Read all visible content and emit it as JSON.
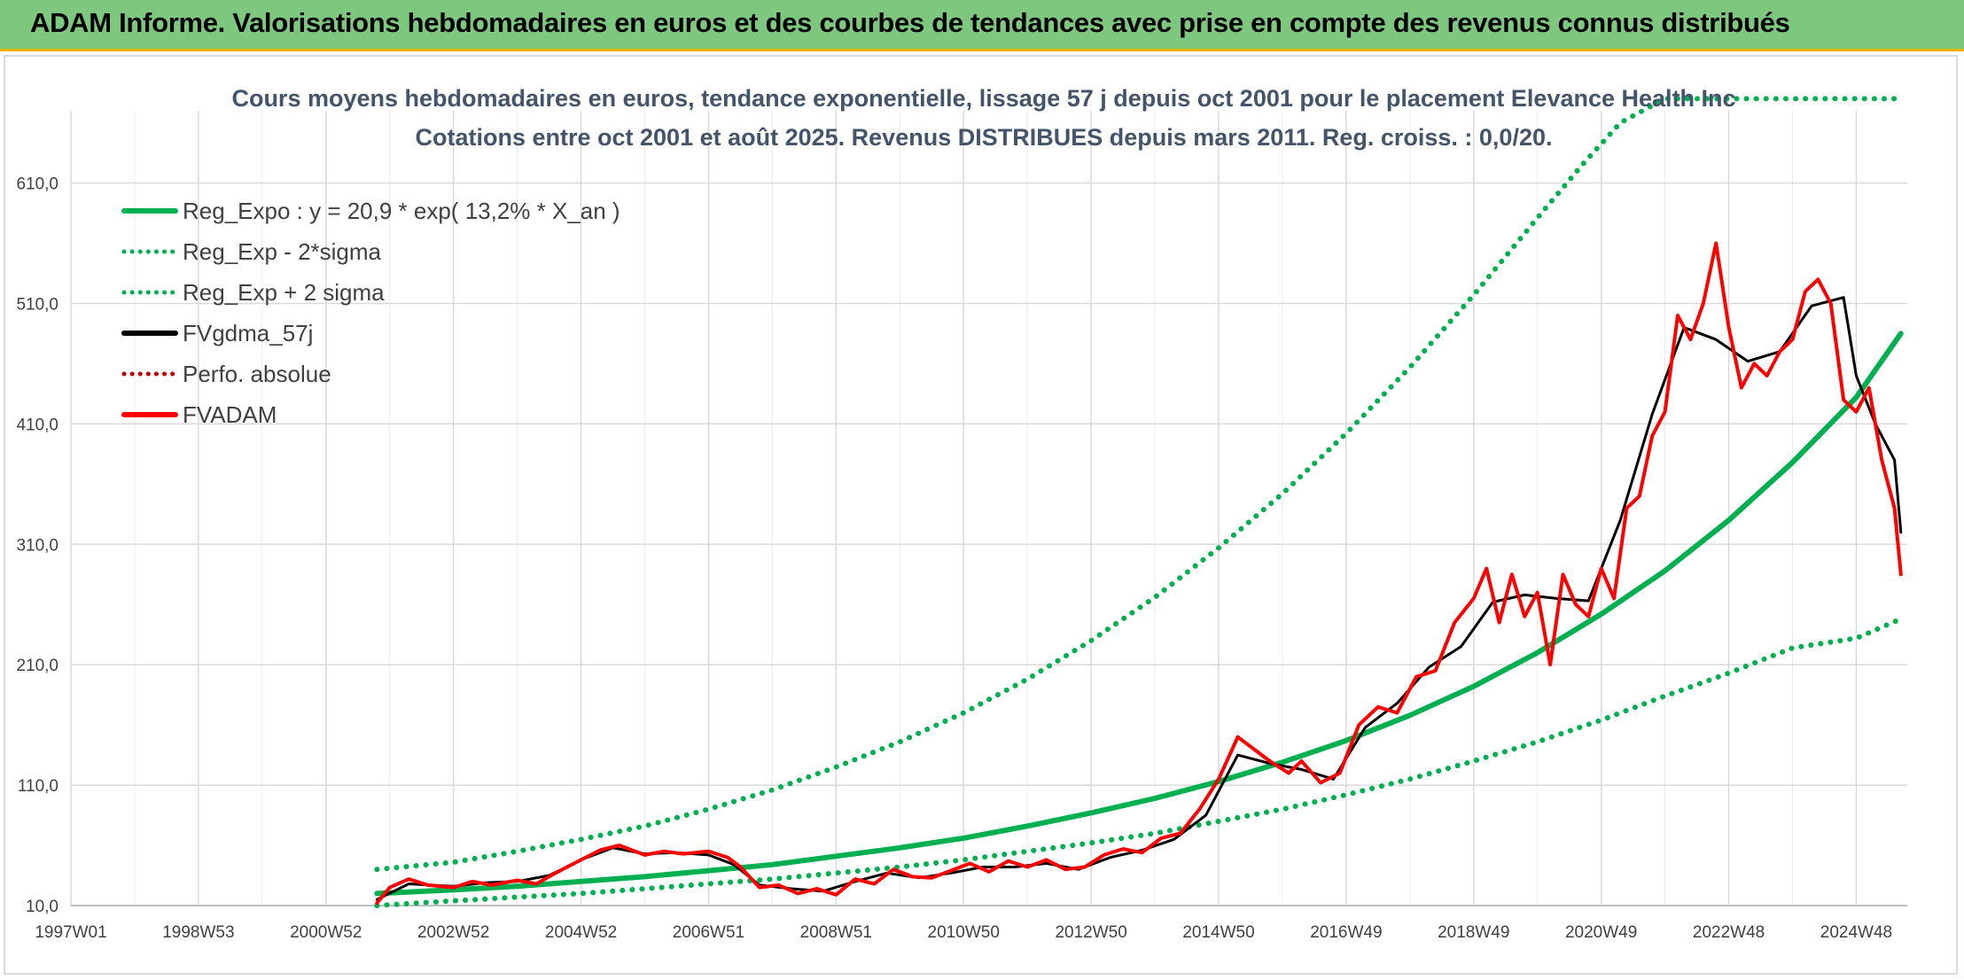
{
  "header": {
    "banner_title": "ADAM Informe. Valorisations hebdomadaires en euros et des courbes de tendances avec prise en compte des revenus connus distribués"
  },
  "chart_data": {
    "type": "line",
    "title_lines": [
      "Cours moyens hebdomadaires en euros, tendance exponentielle, lissage 57 j depuis oct 2001 pour le placement Elevance Health Inc",
      "Cotations entre oct 2001 et août 2025. Revenus DISTRIBUES depuis mars 2011. Reg. croiss. : 0,0/20."
    ],
    "xlabel": "",
    "ylabel": "",
    "x_ticks": [
      "1997W01",
      "1998W53",
      "2000W52",
      "2002W52",
      "2004W52",
      "2006W51",
      "2008W51",
      "2010W50",
      "2012W50",
      "2014W50",
      "2016W49",
      "2018W49",
      "2020W49",
      "2022W48",
      "2024W48"
    ],
    "x_range_years": [
      1997.0,
      2025.8
    ],
    "y_ticks": [
      "10,0",
      "110,0",
      "210,0",
      "310,0",
      "410,0",
      "510,0",
      "610,0"
    ],
    "ylim": [
      10,
      670
    ],
    "grid": true,
    "legend_position": "top-left",
    "colors": {
      "regression": "#00b050",
      "smoothed": "#000000",
      "fvadam": "#ff0000",
      "perfo": "#c00000",
      "grid": "#d9d9d9",
      "banner": "#7dc87e"
    },
    "series": [
      {
        "name": "Reg_Expo : y = 20,9 * exp( 13,2% *  X_an )",
        "style": "solid",
        "color": "#00b050",
        "points": [
          [
            2001.8,
            20
          ],
          [
            2003.0,
            23
          ],
          [
            2004.0,
            26
          ],
          [
            2005.0,
            30
          ],
          [
            2006.0,
            34
          ],
          [
            2007.0,
            39
          ],
          [
            2008.0,
            44
          ],
          [
            2009.0,
            51
          ],
          [
            2010.0,
            58
          ],
          [
            2011.0,
            66
          ],
          [
            2012.0,
            76
          ],
          [
            2013.0,
            87
          ],
          [
            2014.0,
            99
          ],
          [
            2015.0,
            113
          ],
          [
            2016.0,
            129
          ],
          [
            2017.0,
            147
          ],
          [
            2018.0,
            168
          ],
          [
            2019.0,
            192
          ],
          [
            2020.0,
            220
          ],
          [
            2021.0,
            252
          ],
          [
            2022.0,
            288
          ],
          [
            2023.0,
            330
          ],
          [
            2024.0,
            378
          ],
          [
            2025.0,
            432
          ],
          [
            2025.7,
            485
          ]
        ]
      },
      {
        "name": "Reg_Exp - 2*sigma",
        "style": "dotted",
        "color": "#00b050",
        "points": [
          [
            2001.8,
            10
          ],
          [
            2003.0,
            14
          ],
          [
            2004.0,
            17
          ],
          [
            2005.0,
            20
          ],
          [
            2006.0,
            24
          ],
          [
            2007.0,
            28
          ],
          [
            2008.0,
            32
          ],
          [
            2009.0,
            37
          ],
          [
            2010.0,
            42
          ],
          [
            2011.0,
            48
          ],
          [
            2012.0,
            55
          ],
          [
            2013.0,
            62
          ],
          [
            2014.0,
            70
          ],
          [
            2015.0,
            80
          ],
          [
            2016.0,
            90
          ],
          [
            2017.0,
            102
          ],
          [
            2018.0,
            115
          ],
          [
            2019.0,
            130
          ],
          [
            2020.0,
            146
          ],
          [
            2021.0,
            164
          ],
          [
            2022.0,
            184
          ],
          [
            2023.0,
            203
          ],
          [
            2024.0,
            224
          ],
          [
            2025.0,
            232
          ],
          [
            2025.7,
            248
          ]
        ]
      },
      {
        "name": "Reg_Exp + 2 sigma",
        "style": "dotted",
        "color": "#00b050",
        "points": [
          [
            2001.8,
            40
          ],
          [
            2003.0,
            46
          ],
          [
            2004.0,
            55
          ],
          [
            2005.0,
            65
          ],
          [
            2006.0,
            76
          ],
          [
            2007.0,
            90
          ],
          [
            2008.0,
            106
          ],
          [
            2009.0,
            125
          ],
          [
            2010.0,
            146
          ],
          [
            2011.0,
            170
          ],
          [
            2012.0,
            198
          ],
          [
            2013.0,
            230
          ],
          [
            2014.0,
            266
          ],
          [
            2015.0,
            307
          ],
          [
            2016.0,
            352
          ],
          [
            2017.0,
            402
          ],
          [
            2018.0,
            457
          ],
          [
            2019.0,
            517
          ],
          [
            2020.0,
            581
          ],
          [
            2020.7,
            625
          ],
          [
            2021.3,
            660
          ],
          [
            2022.0,
            680
          ],
          [
            2023.0,
            680
          ],
          [
            2024.0,
            680
          ],
          [
            2025.7,
            680
          ]
        ]
      },
      {
        "name": "FVgdma_57j",
        "style": "solid",
        "color": "#000000",
        "points": [
          [
            2001.8,
            15
          ],
          [
            2002.3,
            28
          ],
          [
            2003.0,
            26
          ],
          [
            2003.5,
            29
          ],
          [
            2004.0,
            30
          ],
          [
            2004.5,
            35
          ],
          [
            2005.0,
            48
          ],
          [
            2005.5,
            58
          ],
          [
            2006.0,
            53
          ],
          [
            2006.5,
            54
          ],
          [
            2007.0,
            52
          ],
          [
            2007.4,
            44
          ],
          [
            2007.8,
            27
          ],
          [
            2008.3,
            24
          ],
          [
            2008.8,
            22
          ],
          [
            2009.3,
            30
          ],
          [
            2009.8,
            37
          ],
          [
            2010.3,
            33
          ],
          [
            2010.8,
            37
          ],
          [
            2011.3,
            42
          ],
          [
            2011.8,
            42
          ],
          [
            2012.3,
            45
          ],
          [
            2012.8,
            40
          ],
          [
            2013.3,
            50
          ],
          [
            2013.8,
            56
          ],
          [
            2014.3,
            65
          ],
          [
            2014.8,
            85
          ],
          [
            2015.3,
            135
          ],
          [
            2015.8,
            128
          ],
          [
            2016.3,
            123
          ],
          [
            2016.8,
            115
          ],
          [
            2017.3,
            158
          ],
          [
            2017.8,
            178
          ],
          [
            2018.3,
            208
          ],
          [
            2018.8,
            225
          ],
          [
            2019.3,
            262
          ],
          [
            2019.8,
            268
          ],
          [
            2020.3,
            265
          ],
          [
            2020.8,
            263
          ],
          [
            2021.3,
            330
          ],
          [
            2021.8,
            418
          ],
          [
            2022.3,
            490
          ],
          [
            2022.8,
            480
          ],
          [
            2023.3,
            462
          ],
          [
            2023.8,
            470
          ],
          [
            2024.3,
            508
          ],
          [
            2024.8,
            515
          ],
          [
            2025.0,
            450
          ],
          [
            2025.3,
            410
          ],
          [
            2025.6,
            380
          ],
          [
            2025.7,
            320
          ]
        ]
      },
      {
        "name": "Perfo. absolue",
        "style": "dotted",
        "color": "#c00000",
        "points": []
      },
      {
        "name": "FVADAM",
        "style": "solid",
        "color": "#ff0000",
        "points": [
          [
            2001.8,
            12
          ],
          [
            2002.0,
            25
          ],
          [
            2002.3,
            32
          ],
          [
            2002.6,
            27
          ],
          [
            2003.0,
            25
          ],
          [
            2003.3,
            30
          ],
          [
            2003.6,
            27
          ],
          [
            2004.0,
            31
          ],
          [
            2004.3,
            28
          ],
          [
            2004.6,
            37
          ],
          [
            2005.0,
            48
          ],
          [
            2005.3,
            56
          ],
          [
            2005.6,
            60
          ],
          [
            2006.0,
            52
          ],
          [
            2006.3,
            55
          ],
          [
            2006.6,
            53
          ],
          [
            2007.0,
            55
          ],
          [
            2007.3,
            50
          ],
          [
            2007.5,
            42
          ],
          [
            2007.8,
            25
          ],
          [
            2008.1,
            27
          ],
          [
            2008.4,
            20
          ],
          [
            2008.7,
            24
          ],
          [
            2009.0,
            19
          ],
          [
            2009.3,
            32
          ],
          [
            2009.6,
            28
          ],
          [
            2009.9,
            40
          ],
          [
            2010.2,
            34
          ],
          [
            2010.5,
            33
          ],
          [
            2010.8,
            39
          ],
          [
            2011.1,
            45
          ],
          [
            2011.4,
            38
          ],
          [
            2011.7,
            47
          ],
          [
            2012.0,
            42
          ],
          [
            2012.3,
            48
          ],
          [
            2012.6,
            40
          ],
          [
            2012.9,
            42
          ],
          [
            2013.2,
            52
          ],
          [
            2013.5,
            57
          ],
          [
            2013.8,
            54
          ],
          [
            2014.1,
            66
          ],
          [
            2014.4,
            70
          ],
          [
            2014.7,
            90
          ],
          [
            2015.0,
            115
          ],
          [
            2015.3,
            150
          ],
          [
            2015.5,
            142
          ],
          [
            2015.8,
            130
          ],
          [
            2016.1,
            120
          ],
          [
            2016.3,
            130
          ],
          [
            2016.6,
            112
          ],
          [
            2016.9,
            120
          ],
          [
            2017.2,
            160
          ],
          [
            2017.5,
            175
          ],
          [
            2017.8,
            170
          ],
          [
            2018.1,
            200
          ],
          [
            2018.4,
            205
          ],
          [
            2018.7,
            245
          ],
          [
            2019.0,
            265
          ],
          [
            2019.2,
            290
          ],
          [
            2019.4,
            245
          ],
          [
            2019.6,
            285
          ],
          [
            2019.8,
            250
          ],
          [
            2020.0,
            270
          ],
          [
            2020.2,
            210
          ],
          [
            2020.4,
            285
          ],
          [
            2020.6,
            260
          ],
          [
            2020.8,
            250
          ],
          [
            2021.0,
            290
          ],
          [
            2021.2,
            265
          ],
          [
            2021.4,
            340
          ],
          [
            2021.6,
            350
          ],
          [
            2021.8,
            400
          ],
          [
            2022.0,
            420
          ],
          [
            2022.2,
            500
          ],
          [
            2022.4,
            480
          ],
          [
            2022.6,
            510
          ],
          [
            2022.8,
            560
          ],
          [
            2023.0,
            490
          ],
          [
            2023.2,
            440
          ],
          [
            2023.4,
            460
          ],
          [
            2023.6,
            450
          ],
          [
            2023.8,
            470
          ],
          [
            2024.0,
            480
          ],
          [
            2024.2,
            520
          ],
          [
            2024.4,
            530
          ],
          [
            2024.6,
            510
          ],
          [
            2024.8,
            430
          ],
          [
            2025.0,
            420
          ],
          [
            2025.2,
            440
          ],
          [
            2025.4,
            380
          ],
          [
            2025.6,
            340
          ],
          [
            2025.7,
            285
          ]
        ]
      }
    ]
  }
}
